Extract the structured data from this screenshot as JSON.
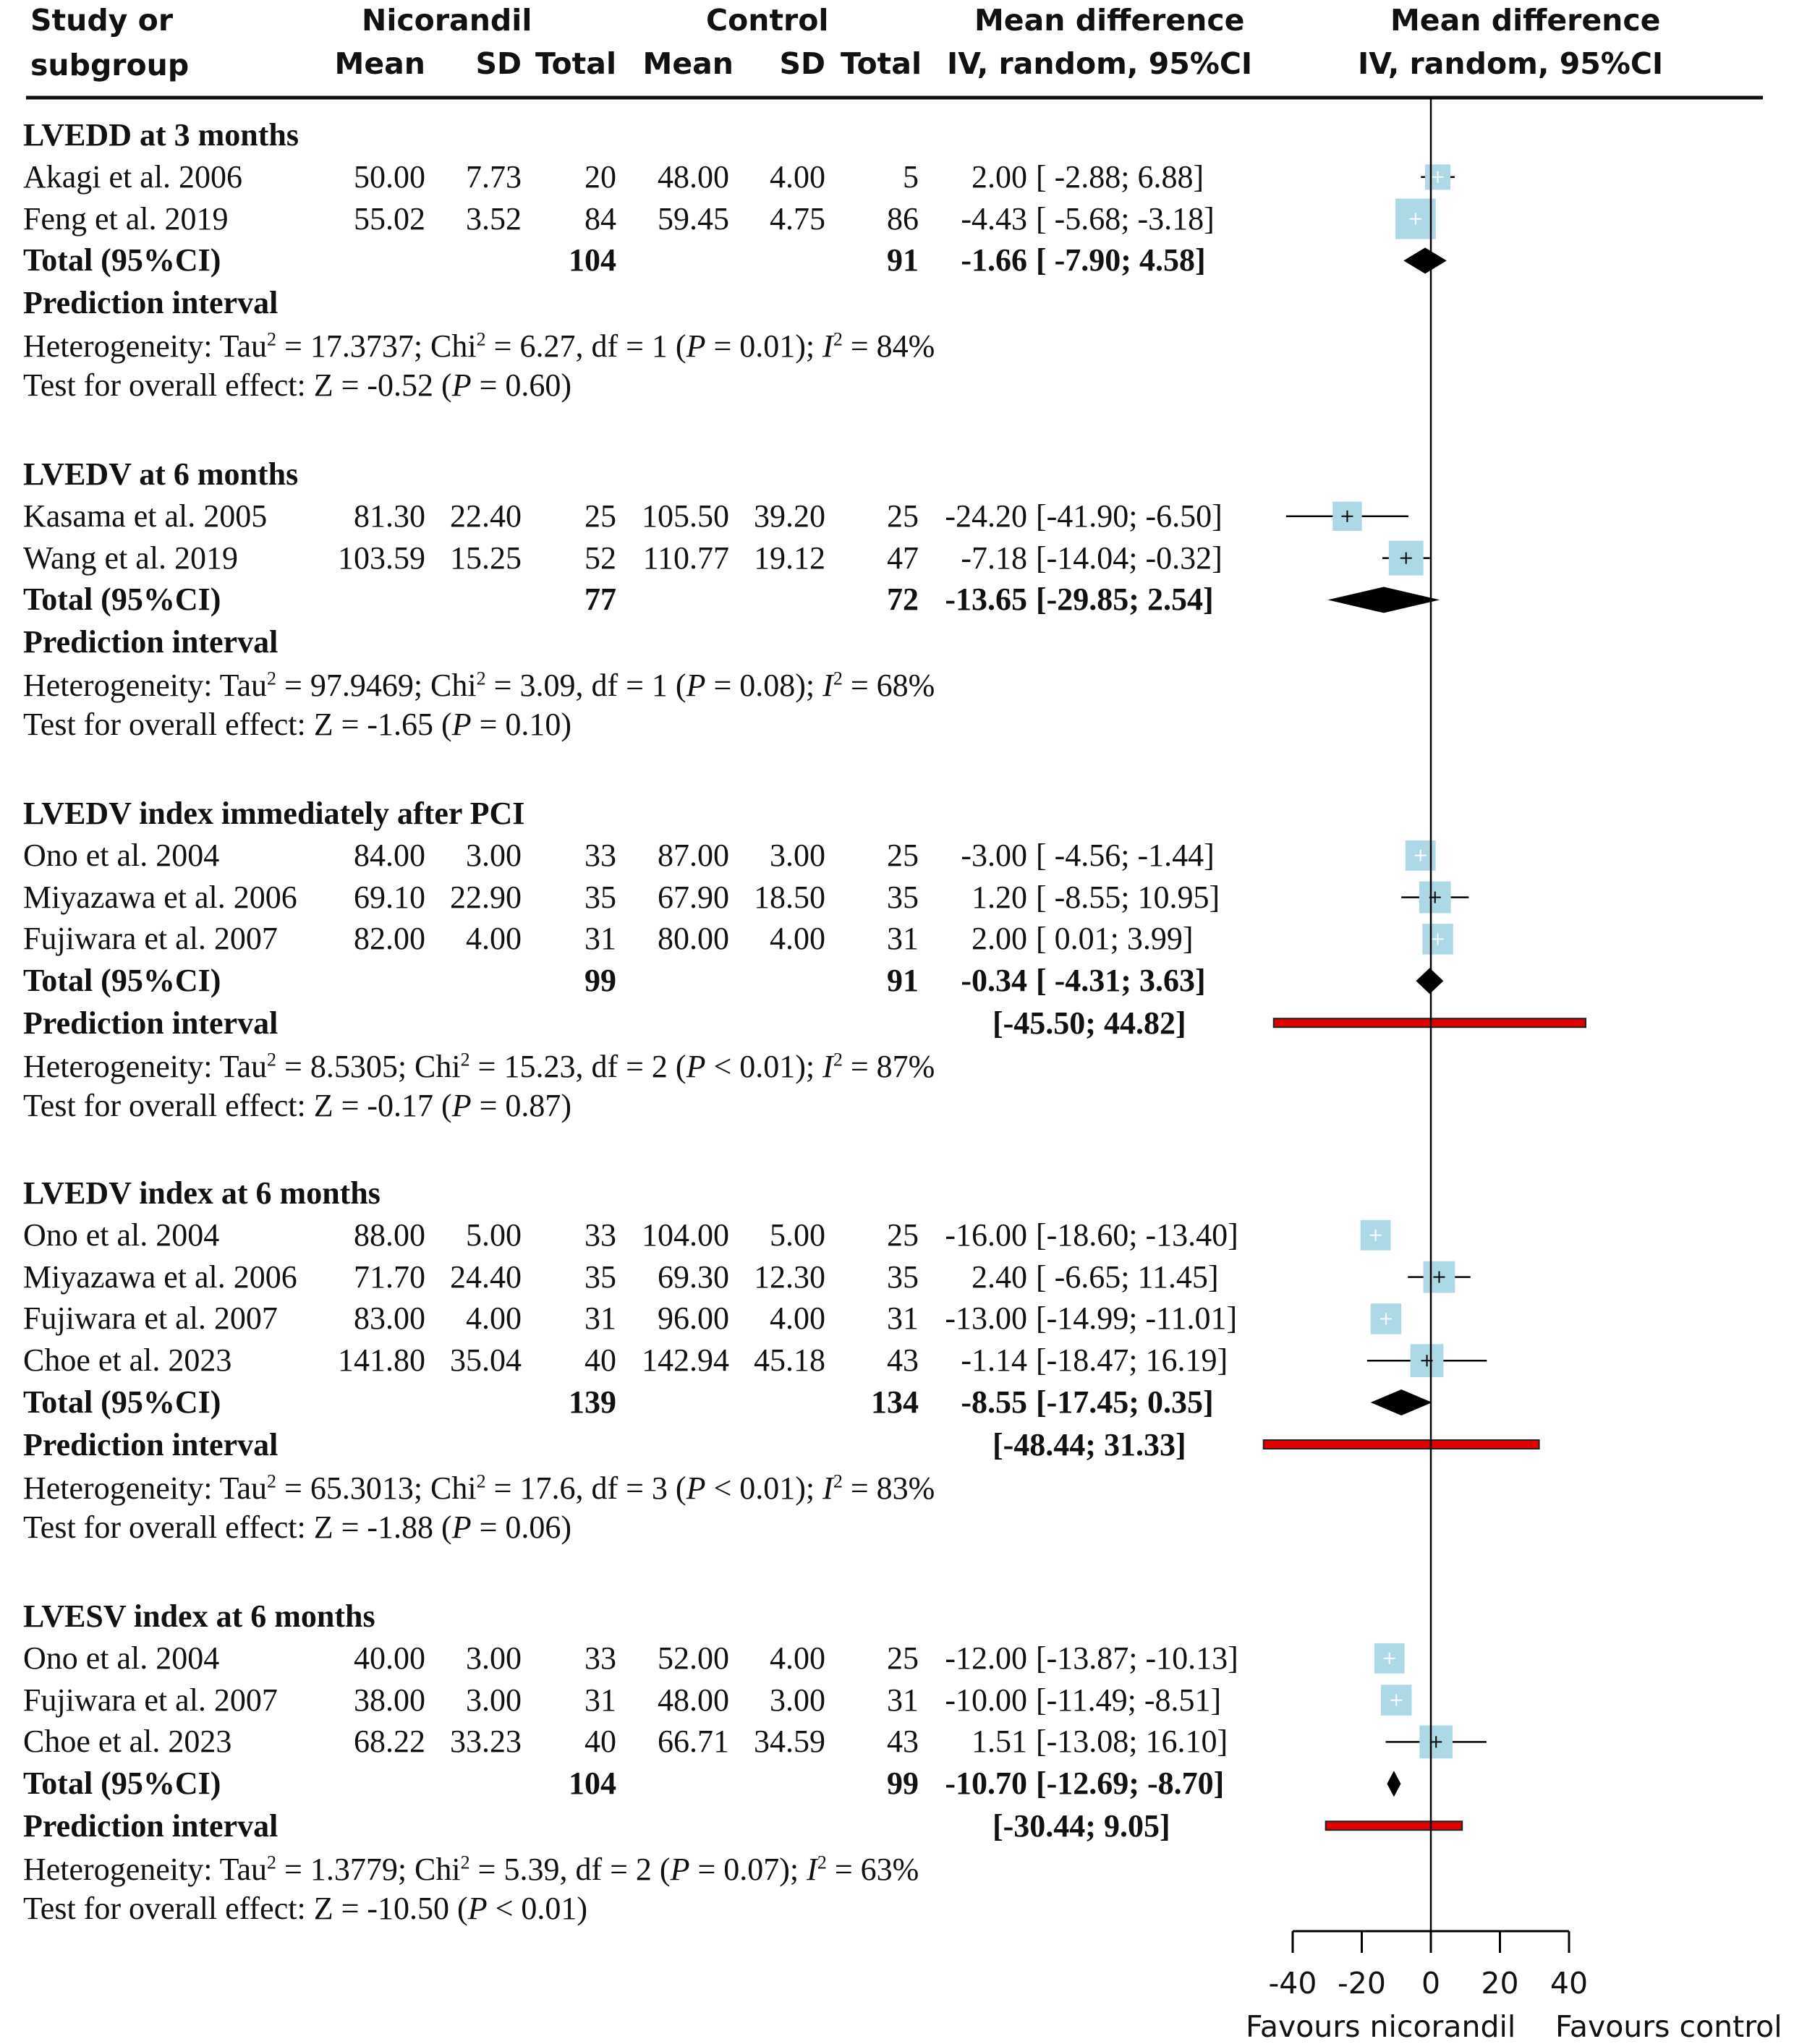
{
  "header": {
    "study_line1": "Study or",
    "study_line2": "subgroup",
    "nicorandil": "Nicorandil",
    "control": "Control",
    "mean": "Mean",
    "sd": "SD",
    "total": "Total",
    "md_title": "Mean difference",
    "md_sub": "IV, random, 95%CI",
    "plot_title": "Mean difference",
    "plot_sub": "IV, random, 95%CI"
  },
  "chart_data": {
    "type": "forest",
    "xlim": [
      -40,
      40
    ],
    "xticks": [
      "-40",
      "-20",
      "0",
      "20",
      "40"
    ],
    "xlabel_left": "Favours nicorandil",
    "xlabel_right": "Favours control",
    "colors": {
      "study_box": "#add8e6",
      "diamond": "#000000",
      "prediction": "#e00000"
    },
    "groups": [
      {
        "title": "LVEDD at 3 months",
        "studies": [
          {
            "name": "Akagi et al. 2006",
            "n_mean": "50.00",
            "n_sd": "7.73",
            "n_total": "20",
            "c_mean": "48.00",
            "c_sd": "4.00",
            "c_total": "5",
            "md": "2.00",
            "ci": "[ -2.88; 6.88]",
            "md_v": 2.0,
            "lo": -2.88,
            "hi": 6.88
          },
          {
            "name": "Feng et al. 2019",
            "n_mean": "55.02",
            "n_sd": "3.52",
            "n_total": "84",
            "c_mean": "59.45",
            "c_sd": "4.75",
            "c_total": "86",
            "md": "-4.43",
            "ci": "[ -5.68; -3.18]",
            "md_v": -4.43,
            "lo": -5.68,
            "hi": -3.18
          }
        ],
        "total": {
          "label": "Total (95%CI)",
          "n_total": "104",
          "c_total": "91",
          "md": "-1.66",
          "ci": "[ -7.90; 4.58]",
          "md_v": -1.66,
          "lo": -7.9,
          "hi": 4.58
        },
        "prediction": {
          "label": "Prediction interval",
          "ci": ""
        },
        "het": {
          "prefix": "Heterogeneity: Tau",
          "tau2": "17.3737",
          "chi2": "6.27",
          "df": "1",
          "p_op": "=",
          "p": "0.01",
          "i2": "84%"
        },
        "test": {
          "prefix": "Test for overall effect: Z = ",
          "z": "-0.52",
          "p_op": "=",
          "p": "0.60"
        }
      },
      {
        "title": "LVEDV at 6 months",
        "studies": [
          {
            "name": "Kasama et al. 2005",
            "n_mean": "81.30",
            "n_sd": "22.40",
            "n_total": "25",
            "c_mean": "105.50",
            "c_sd": "39.20",
            "c_total": "25",
            "md": "-24.20",
            "ci": "[-41.90; -6.50]",
            "md_v": -24.2,
            "lo": -41.9,
            "hi": -6.5
          },
          {
            "name": "Wang et al. 2019",
            "n_mean": "103.59",
            "n_sd": "15.25",
            "n_total": "52",
            "c_mean": "110.77",
            "c_sd": "19.12",
            "c_total": "47",
            "md": "-7.18",
            "ci": "[-14.04; -0.32]",
            "md_v": -7.18,
            "lo": -14.04,
            "hi": -0.32
          }
        ],
        "total": {
          "label": "Total (95%CI)",
          "n_total": "77",
          "c_total": "72",
          "md": "-13.65",
          "ci": "[-29.85; 2.54]",
          "md_v": -13.65,
          "lo": -29.85,
          "hi": 2.54
        },
        "prediction": {
          "label": "Prediction interval",
          "ci": ""
        },
        "het": {
          "prefix": "Heterogeneity: Tau",
          "tau2": "97.9469",
          "chi2": "3.09",
          "df": "1",
          "p_op": "=",
          "p": "0.08",
          "i2": "68%"
        },
        "test": {
          "prefix": "Test for overall effect: Z = ",
          "z": "-1.65",
          "p_op": "=",
          "p": "0.10"
        }
      },
      {
        "title": "LVEDV index immediately after PCI",
        "studies": [
          {
            "name": "Ono et al. 2004",
            "n_mean": "84.00",
            "n_sd": "3.00",
            "n_total": "33",
            "c_mean": "87.00",
            "c_sd": "3.00",
            "c_total": "25",
            "md": "-3.00",
            "ci": "[ -4.56; -1.44]",
            "md_v": -3.0,
            "lo": -4.56,
            "hi": -1.44
          },
          {
            "name": "Miyazawa et al. 2006",
            "n_mean": "69.10",
            "n_sd": "22.90",
            "n_total": "35",
            "c_mean": "67.90",
            "c_sd": "18.50",
            "c_total": "35",
            "md": "1.20",
            "ci": "[ -8.55; 10.95]",
            "md_v": 1.2,
            "lo": -8.55,
            "hi": 10.95
          },
          {
            "name": "Fujiwara et al. 2007",
            "n_mean": "82.00",
            "n_sd": "4.00",
            "n_total": "31",
            "c_mean": "80.00",
            "c_sd": "4.00",
            "c_total": "31",
            "md": "2.00",
            "ci": "[ 0.01; 3.99]",
            "md_v": 2.0,
            "lo": 0.01,
            "hi": 3.99
          }
        ],
        "total": {
          "label": "Total (95%CI)",
          "n_total": "99",
          "c_total": "91",
          "md": "-0.34",
          "ci": "[ -4.31; 3.63]",
          "md_v": -0.34,
          "lo": -4.31,
          "hi": 3.63
        },
        "prediction": {
          "label": "Prediction interval",
          "ci": "[-45.50; 44.82]",
          "lo": -45.5,
          "hi": 44.82
        },
        "het": {
          "prefix": "Heterogeneity: Tau",
          "tau2": "8.5305",
          "chi2": "15.23",
          "df": "2",
          "p_op": "<",
          "p": "0.01",
          "i2": "87%"
        },
        "test": {
          "prefix": "Test for overall effect: Z = ",
          "z": "-0.17",
          "p_op": "=",
          "p": "0.87"
        }
      },
      {
        "title": "LVEDV index at 6 months",
        "studies": [
          {
            "name": "Ono et al. 2004",
            "n_mean": "88.00",
            "n_sd": "5.00",
            "n_total": "33",
            "c_mean": "104.00",
            "c_sd": "5.00",
            "c_total": "25",
            "md": "-16.00",
            "ci": "[-18.60; -13.40]",
            "md_v": -16.0,
            "lo": -18.6,
            "hi": -13.4
          },
          {
            "name": "Miyazawa et al. 2006",
            "n_mean": "71.70",
            "n_sd": "24.40",
            "n_total": "35",
            "c_mean": "69.30",
            "c_sd": "12.30",
            "c_total": "35",
            "md": "2.40",
            "ci": "[ -6.65; 11.45]",
            "md_v": 2.4,
            "lo": -6.65,
            "hi": 11.45
          },
          {
            "name": "Fujiwara et al. 2007",
            "n_mean": "83.00",
            "n_sd": "4.00",
            "n_total": "31",
            "c_mean": "96.00",
            "c_sd": "4.00",
            "c_total": "31",
            "md": "-13.00",
            "ci": "[-14.99; -11.01]",
            "md_v": -13.0,
            "lo": -14.99,
            "hi": -11.01
          },
          {
            "name": "Choe et al. 2023",
            "n_mean": "141.80",
            "n_sd": "35.04",
            "n_total": "40",
            "c_mean": "142.94",
            "c_sd": "45.18",
            "c_total": "43",
            "md": "-1.14",
            "ci": "[-18.47; 16.19]",
            "md_v": -1.14,
            "lo": -18.47,
            "hi": 16.19
          }
        ],
        "total": {
          "label": "Total (95%CI)",
          "n_total": "139",
          "c_total": "134",
          "md": "-8.55",
          "ci": "[-17.45; 0.35]",
          "md_v": -8.55,
          "lo": -17.45,
          "hi": 0.35
        },
        "prediction": {
          "label": "Prediction interval",
          "ci": "[-48.44; 31.33]",
          "lo": -48.44,
          "hi": 31.33
        },
        "het": {
          "prefix": "Heterogeneity: Tau",
          "tau2": "65.3013",
          "chi2": "17.6",
          "df": "3",
          "p_op": "<",
          "p": "0.01",
          "i2": "83%"
        },
        "test": {
          "prefix": "Test for overall effect: Z = ",
          "z": "-1.88",
          "p_op": "=",
          "p": "0.06"
        }
      },
      {
        "title": "LVESV index at 6 months",
        "studies": [
          {
            "name": "Ono et al. 2004",
            "n_mean": "40.00",
            "n_sd": "3.00",
            "n_total": "33",
            "c_mean": "52.00",
            "c_sd": "4.00",
            "c_total": "25",
            "md": "-12.00",
            "ci": "[-13.87; -10.13]",
            "md_v": -12.0,
            "lo": -13.87,
            "hi": -10.13
          },
          {
            "name": "Fujiwara et al. 2007",
            "n_mean": "38.00",
            "n_sd": "3.00",
            "n_total": "31",
            "c_mean": "48.00",
            "c_sd": "3.00",
            "c_total": "31",
            "md": "-10.00",
            "ci": "[-11.49; -8.51]",
            "md_v": -10.0,
            "lo": -11.49,
            "hi": -8.51
          },
          {
            "name": "Choe et al. 2023",
            "n_mean": "68.22",
            "n_sd": "33.23",
            "n_total": "40",
            "c_mean": "66.71",
            "c_sd": "34.59",
            "c_total": "43",
            "md": "1.51",
            "ci": "[-13.08; 16.10]",
            "md_v": 1.51,
            "lo": -13.08,
            "hi": 16.1
          }
        ],
        "total": {
          "label": "Total (95%CI)",
          "n_total": "104",
          "c_total": "99",
          "md": "-10.70",
          "ci": "[-12.69; -8.70]",
          "md_v": -10.7,
          "lo": -12.69,
          "hi": -8.7
        },
        "prediction": {
          "label": "Prediction interval",
          "ci": "[-30.44; 9.05]",
          "lo": -30.44,
          "hi": 9.05
        },
        "het": {
          "prefix": "Heterogeneity: Tau",
          "tau2": "1.3779",
          "chi2": "5.39",
          "df": "2",
          "p_op": "=",
          "p": "0.07",
          "i2": "63%"
        },
        "test": {
          "prefix": "Test for overall effect: Z = ",
          "z": "-10.50",
          "p_op": "<",
          "p": "0.01"
        }
      }
    ]
  }
}
